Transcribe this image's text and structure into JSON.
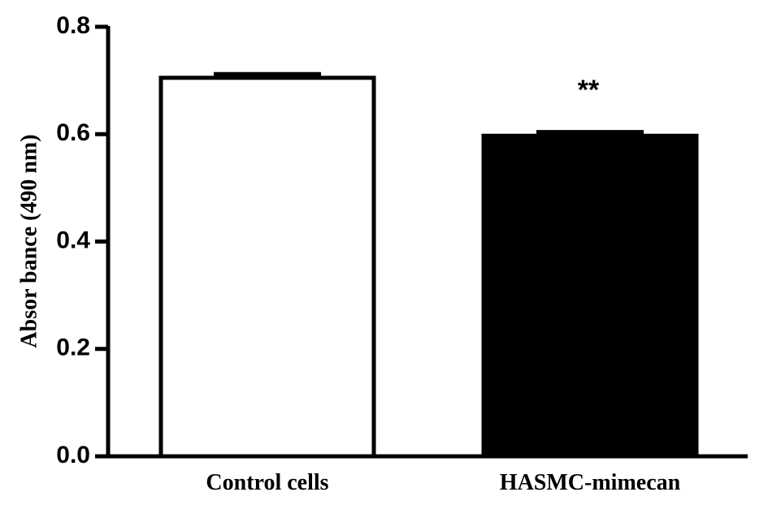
{
  "chart_data": {
    "type": "bar",
    "title": "",
    "xlabel": "",
    "ylabel": "Absor bance (490 nm)",
    "ylim": [
      0,
      0.8
    ],
    "yticks": [
      "0.0",
      "0.2",
      "0.4",
      "0.6",
      "0.8"
    ],
    "grid": false,
    "categories": [
      "Control cells",
      "HASMC-mimecan"
    ],
    "values": [
      0.705,
      0.597
    ],
    "errors": [
      0.007,
      0.007
    ],
    "bar_fills": [
      "#ffffff",
      "#000000"
    ],
    "bar_stroke": "#000000",
    "annotations": [
      {
        "category": "HASMC-mimecan",
        "text": "**"
      }
    ]
  }
}
